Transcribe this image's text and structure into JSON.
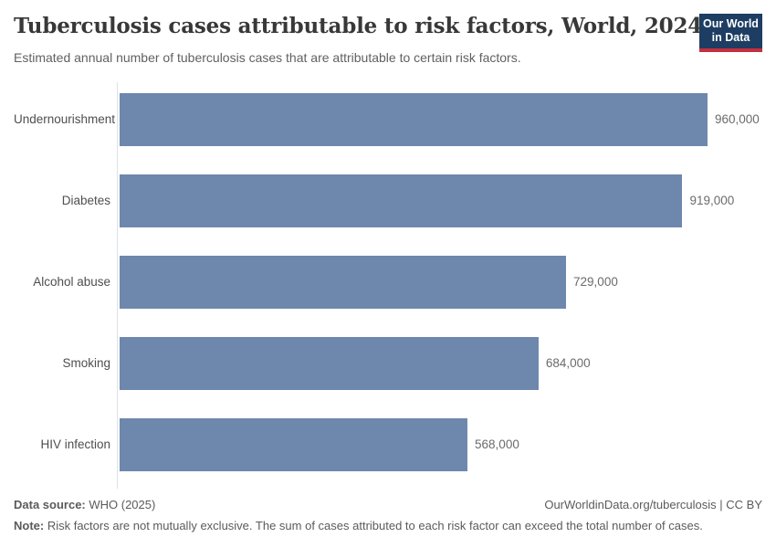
{
  "chart_data": {
    "type": "bar",
    "orientation": "horizontal",
    "title": "Tuberculosis cases attributable to risk factors, World, 2024",
    "subtitle": "Estimated annual number of tuberculosis cases that are attributable to certain risk factors.",
    "categories": [
      "Undernourishment",
      "Diabetes",
      "Alcohol abuse",
      "Smoking",
      "HIV infection"
    ],
    "values": [
      960000,
      919000,
      729000,
      684000,
      568000
    ],
    "value_labels": [
      "960,000",
      "919,000",
      "729,000",
      "684,000",
      "568,000"
    ],
    "xlim": [
      0,
      960000
    ],
    "grid": false,
    "legend": "none",
    "bar_color": "#6e87ad",
    "axis_line_color": "#dee2e8"
  },
  "logo": {
    "line1": "Our World",
    "line2": "in Data",
    "bg_color": "#1d3d63",
    "accent_color": "#c5303e"
  },
  "footer": {
    "datasource_label": "Data source:",
    "datasource_value": " WHO (2025)",
    "attribution": "OurWorldinData.org/tuberculosis | CC BY",
    "note_label": "Note:",
    "note_text": " Risk factors are not mutually exclusive. The sum of cases attributed to each risk factor can exceed the total number of cases."
  }
}
